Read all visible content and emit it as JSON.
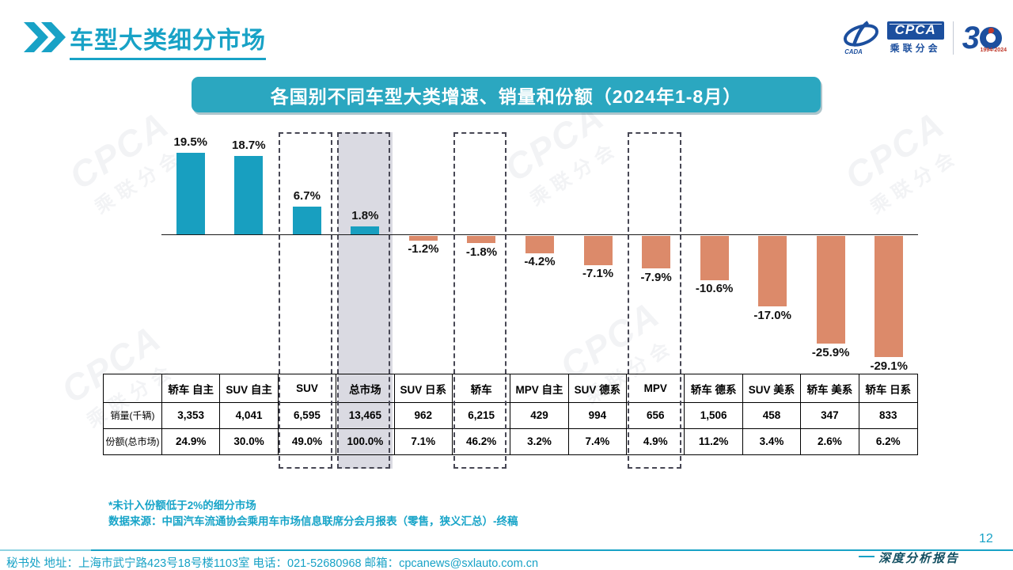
{
  "header": {
    "title": "车型大类细分市场",
    "logo": {
      "cpca": "CPCA",
      "org": "乘联分会",
      "cada": "CADA",
      "anniversary_3": "3",
      "years": "1994-2024"
    }
  },
  "banner": {
    "title": "各国别不同车型大类增速、销量和份额（2024年1-8月）"
  },
  "chart_data": {
    "type": "bar",
    "title": "各国别不同车型大类增速、销量和份额（2024年1-8月）",
    "categories": [
      "轿车 自主",
      "SUV 自主",
      "SUV",
      "总市场",
      "SUV 日系",
      "轿车",
      "MPV 自主",
      "SUV 德系",
      "MPV",
      "轿车 德系",
      "SUV 美系",
      "轿车 美系",
      "轿车 日系"
    ],
    "values": [
      19.5,
      18.7,
      6.7,
      1.8,
      -1.2,
      -1.8,
      -4.2,
      -7.1,
      -7.9,
      -10.6,
      -17.0,
      -25.9,
      -29.1
    ],
    "unit": "%",
    "ylim": [
      -30,
      22
    ],
    "grid": false,
    "series": [
      {
        "name": "销量(千辆)",
        "values": [
          "3,353",
          "4,041",
          "6,595",
          "13,465",
          "962",
          "6,215",
          "429",
          "994",
          "656",
          "1,506",
          "458",
          "347",
          "833"
        ]
      },
      {
        "name": "份额(总市场)",
        "values": [
          "24.9%",
          "30.0%",
          "49.0%",
          "100.0%",
          "7.1%",
          "46.2%",
          "3.2%",
          "7.4%",
          "4.9%",
          "11.2%",
          "3.4%",
          "2.6%",
          "6.2%"
        ]
      }
    ],
    "highlight_boxes": [
      "SUV",
      "总市场",
      "轿车",
      "MPV"
    ],
    "filled_box": "总市场"
  },
  "notes": {
    "line1": "*未计入份额低于2%的细分市场",
    "line2": "数据来源：中国汽车流通协会乘用车市场信息联席分会月报表（零售，狭义汇总）-终稿"
  },
  "footer": {
    "info": "秘书处  地址：上海市武宁路423号18号楼1103室 电话：021-52680968   邮箱：cpcanews@sxlauto.com.cn",
    "page": "12",
    "report": "深度分析报告"
  },
  "watermark": {
    "line1": "CPCA",
    "line2": "乘联分会"
  },
  "colors": {
    "teal": "#18a2c6",
    "teal_banner": "#2ba7c0",
    "teal_note": "#17a4c8",
    "navy": "#1c4f9e",
    "bar_positive": "#189fc0",
    "bar_negative": "#dc8a6a",
    "gray_fill": "#dadae2",
    "dash": "#474754"
  }
}
